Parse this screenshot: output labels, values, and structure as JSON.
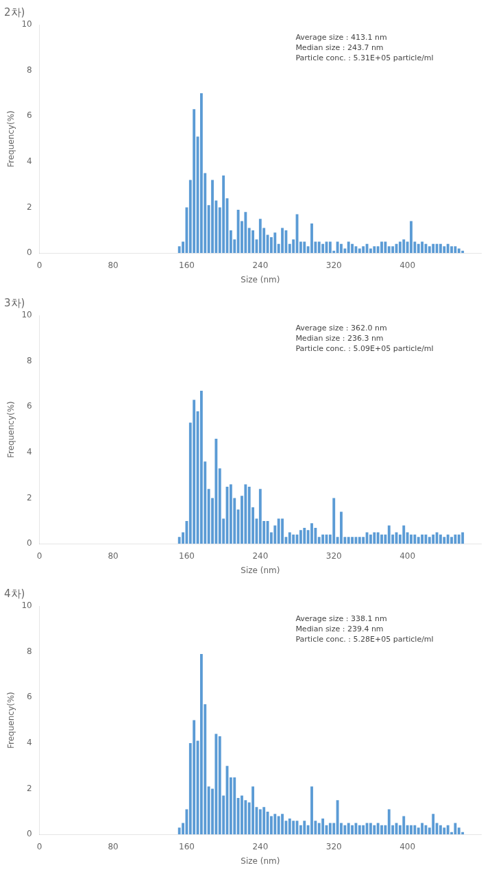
{
  "chart_data": [
    {
      "type": "bar",
      "title": "2차)",
      "annotation": "Average size : 413.1 nm\nMedian size : 243.7 nm\nParticle conc. : 5.31E+05 particle/ml",
      "color": "#5b9bd5",
      "x_label": "Size (nm)",
      "y_label": "Frequency(%)",
      "xlim": [
        0,
        480
      ],
      "ylim": [
        0,
        10
      ],
      "xticks": [
        0,
        80,
        160,
        240,
        320,
        400
      ],
      "yticks": [
        0,
        2,
        4,
        6,
        8,
        10
      ],
      "grid": false,
      "x": [
        152,
        156,
        160,
        164,
        168,
        172,
        176,
        180,
        184,
        188,
        192,
        196,
        200,
        204,
        208,
        212,
        216,
        220,
        224,
        228,
        232,
        236,
        240,
        244,
        248,
        252,
        256,
        260,
        264,
        268,
        272,
        276,
        280,
        284,
        288,
        292,
        296,
        300,
        304,
        308,
        312,
        316,
        320,
        324,
        328,
        332,
        336,
        340,
        344,
        348,
        352,
        356,
        360,
        364,
        368,
        372,
        376,
        380,
        384,
        388,
        392,
        396,
        400,
        404,
        408,
        412,
        416,
        420,
        424,
        428,
        432,
        436,
        440,
        444,
        448,
        452,
        456,
        460
      ],
      "values": [
        0.3,
        0.5,
        2.0,
        3.2,
        6.3,
        5.1,
        7.0,
        3.5,
        2.1,
        3.2,
        2.3,
        2.0,
        3.4,
        2.4,
        1.0,
        0.6,
        1.9,
        1.4,
        1.8,
        1.1,
        1.0,
        0.6,
        1.5,
        1.1,
        0.8,
        0.7,
        0.9,
        0.4,
        1.1,
        1.0,
        0.4,
        0.6,
        1.7,
        0.5,
        0.5,
        0.3,
        1.3,
        0.5,
        0.5,
        0.4,
        0.5,
        0.5,
        0.1,
        0.5,
        0.4,
        0.2,
        0.5,
        0.4,
        0.3,
        0.2,
        0.3,
        0.4,
        0.2,
        0.3,
        0.3,
        0.5,
        0.5,
        0.3,
        0.3,
        0.4,
        0.5,
        0.6,
        0.5,
        1.4,
        0.5,
        0.4,
        0.5,
        0.4,
        0.3,
        0.4,
        0.4,
        0.4,
        0.3,
        0.4,
        0.3,
        0.3,
        0.2,
        0.1
      ]
    },
    {
      "type": "bar",
      "title": "3차)",
      "annotation": "Average size : 362.0 nm\nMedian size : 236.3 nm\nParticle conc. : 5.09E+05 particle/ml",
      "color": "#5b9bd5",
      "x_label": "Size (nm)",
      "y_label": "Frequency(%)",
      "xlim": [
        0,
        480
      ],
      "ylim": [
        0,
        10
      ],
      "xticks": [
        0,
        80,
        160,
        240,
        320,
        400
      ],
      "yticks": [
        0,
        2,
        4,
        6,
        8,
        10
      ],
      "grid": false,
      "x": [
        152,
        156,
        160,
        164,
        168,
        172,
        176,
        180,
        184,
        188,
        192,
        196,
        200,
        204,
        208,
        212,
        216,
        220,
        224,
        228,
        232,
        236,
        240,
        244,
        248,
        252,
        256,
        260,
        264,
        268,
        272,
        276,
        280,
        284,
        288,
        292,
        296,
        300,
        304,
        308,
        312,
        316,
        320,
        324,
        328,
        332,
        336,
        340,
        344,
        348,
        352,
        356,
        360,
        364,
        368,
        372,
        376,
        380,
        384,
        388,
        392,
        396,
        400,
        404,
        408,
        412,
        416,
        420,
        424,
        428,
        432,
        436,
        440,
        444,
        448,
        452,
        456,
        460
      ],
      "values": [
        0.3,
        0.5,
        1.0,
        5.3,
        6.3,
        5.8,
        6.7,
        3.6,
        2.4,
        2.0,
        4.6,
        3.3,
        1.1,
        2.5,
        2.6,
        2.0,
        1.5,
        2.1,
        2.6,
        2.5,
        1.6,
        1.1,
        2.4,
        1.0,
        1.0,
        0.5,
        0.8,
        1.1,
        1.1,
        0.3,
        0.5,
        0.4,
        0.4,
        0.6,
        0.7,
        0.6,
        0.9,
        0.7,
        0.3,
        0.4,
        0.4,
        0.4,
        2.0,
        0.3,
        1.4,
        0.3,
        0.3,
        0.3,
        0.3,
        0.3,
        0.3,
        0.5,
        0.4,
        0.5,
        0.5,
        0.4,
        0.4,
        0.8,
        0.4,
        0.5,
        0.4,
        0.8,
        0.5,
        0.4,
        0.4,
        0.3,
        0.4,
        0.4,
        0.3,
        0.4,
        0.5,
        0.4,
        0.3,
        0.4,
        0.3,
        0.4,
        0.4,
        0.5
      ]
    },
    {
      "type": "bar",
      "title": "4차)",
      "annotation": "Average size : 338.1 nm\nMedian size : 239.4 nm\nParticle conc. : 5.28E+05 particle/ml",
      "color": "#5b9bd5",
      "x_label": "Size (nm)",
      "y_label": "Frequency(%)",
      "xlim": [
        0,
        480
      ],
      "ylim": [
        0,
        10
      ],
      "xticks": [
        0,
        80,
        160,
        240,
        320,
        400
      ],
      "yticks": [
        0,
        2,
        4,
        6,
        8,
        10
      ],
      "grid": false,
      "x": [
        152,
        156,
        160,
        164,
        168,
        172,
        176,
        180,
        184,
        188,
        192,
        196,
        200,
        204,
        208,
        212,
        216,
        220,
        224,
        228,
        232,
        236,
        240,
        244,
        248,
        252,
        256,
        260,
        264,
        268,
        272,
        276,
        280,
        284,
        288,
        292,
        296,
        300,
        304,
        308,
        312,
        316,
        320,
        324,
        328,
        332,
        336,
        340,
        344,
        348,
        352,
        356,
        360,
        364,
        368,
        372,
        376,
        380,
        384,
        388,
        392,
        396,
        400,
        404,
        408,
        412,
        416,
        420,
        424,
        428,
        432,
        436,
        440,
        444,
        448,
        452,
        456,
        460
      ],
      "values": [
        0.3,
        0.5,
        1.1,
        4.0,
        5.0,
        4.1,
        7.9,
        5.7,
        2.1,
        2.0,
        4.4,
        4.3,
        1.7,
        3.0,
        2.5,
        2.5,
        1.6,
        1.7,
        1.5,
        1.4,
        2.1,
        1.2,
        1.1,
        1.2,
        1.0,
        0.8,
        0.9,
        0.8,
        0.9,
        0.6,
        0.7,
        0.6,
        0.6,
        0.4,
        0.6,
        0.4,
        2.1,
        0.6,
        0.5,
        0.7,
        0.4,
        0.5,
        0.5,
        1.5,
        0.5,
        0.4,
        0.5,
        0.4,
        0.5,
        0.4,
        0.4,
        0.5,
        0.5,
        0.4,
        0.5,
        0.4,
        0.4,
        1.1,
        0.4,
        0.5,
        0.4,
        0.8,
        0.4,
        0.4,
        0.4,
        0.3,
        0.5,
        0.4,
        0.3,
        0.9,
        0.5,
        0.4,
        0.3,
        0.4,
        0.1,
        0.5,
        0.3,
        0.1
      ]
    }
  ]
}
